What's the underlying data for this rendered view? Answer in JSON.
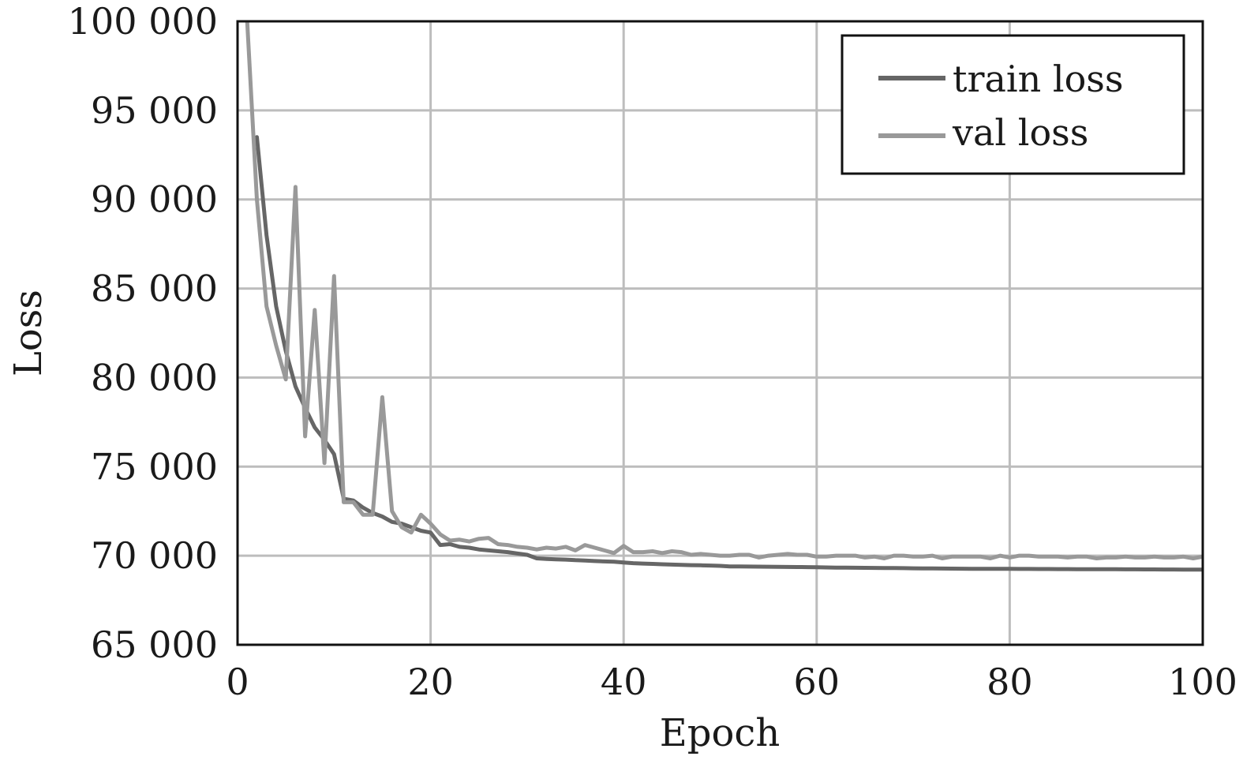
{
  "chart_data": {
    "type": "line",
    "title": "",
    "xlabel": "Epoch",
    "ylabel": "Loss",
    "xlim": [
      0,
      100
    ],
    "ylim": [
      65000,
      100000
    ],
    "xticks": [
      0,
      20,
      40,
      60,
      80,
      100
    ],
    "xtick_labels": [
      "0",
      "20",
      "40",
      "60",
      "80",
      "100"
    ],
    "yticks": [
      65000,
      70000,
      75000,
      80000,
      85000,
      90000,
      95000,
      100000
    ],
    "ytick_labels": [
      "65 000",
      "70 000",
      "75 000",
      "80 000",
      "85 000",
      "90 000",
      "95 000",
      "100 000"
    ],
    "grid": true,
    "legend_position": "top-right",
    "series": [
      {
        "name": "train loss",
        "color": "#666666",
        "x": [
          2,
          3,
          4,
          5,
          6,
          7,
          8,
          9,
          10,
          11,
          12,
          13,
          14,
          15,
          16,
          17,
          18,
          19,
          20,
          21,
          22,
          23,
          24,
          25,
          26,
          27,
          28,
          29,
          30,
          31,
          32,
          33,
          34,
          35,
          36,
          37,
          38,
          39,
          40,
          41,
          42,
          43,
          44,
          45,
          46,
          47,
          48,
          49,
          50,
          51,
          52,
          53,
          54,
          55,
          56,
          57,
          58,
          59,
          60,
          61,
          62,
          63,
          64,
          65,
          66,
          67,
          68,
          69,
          70,
          71,
          72,
          73,
          74,
          75,
          76,
          77,
          78,
          79,
          80,
          81,
          82,
          83,
          84,
          85,
          86,
          87,
          88,
          89,
          90,
          91,
          92,
          93,
          94,
          95,
          96,
          97,
          98,
          99,
          100
        ],
        "values": [
          93500,
          88000,
          84000,
          81500,
          79500,
          78300,
          77200,
          76500,
          75700,
          73200,
          73100,
          72700,
          72400,
          72200,
          71900,
          71800,
          71600,
          71400,
          71300,
          70600,
          70650,
          70500,
          70450,
          70350,
          70300,
          70250,
          70200,
          70120,
          70050,
          69850,
          69820,
          69800,
          69780,
          69750,
          69730,
          69700,
          69680,
          69660,
          69620,
          69580,
          69560,
          69540,
          69520,
          69500,
          69490,
          69470,
          69460,
          69450,
          69430,
          69400,
          69395,
          69390,
          69385,
          69380,
          69375,
          69370,
          69365,
          69360,
          69355,
          69340,
          69335,
          69330,
          69325,
          69320,
          69315,
          69310,
          69305,
          69300,
          69295,
          69290,
          69285,
          69280,
          69275,
          69270,
          69268,
          69266,
          69264,
          69262,
          69260,
          69258,
          69256,
          69254,
          69252,
          69250,
          69248,
          69246,
          69244,
          69242,
          69240,
          69238,
          69236,
          69234,
          69232,
          69230,
          69228,
          69226,
          69224,
          69222,
          69220
        ]
      },
      {
        "name": "val loss",
        "color": "#999999",
        "x": [
          1,
          2,
          3,
          4,
          5,
          6,
          7,
          8,
          9,
          10,
          11,
          12,
          13,
          14,
          15,
          16,
          17,
          18,
          19,
          20,
          21,
          22,
          23,
          24,
          25,
          26,
          27,
          28,
          29,
          30,
          31,
          32,
          33,
          34,
          35,
          36,
          37,
          38,
          39,
          40,
          41,
          42,
          43,
          44,
          45,
          46,
          47,
          48,
          49,
          50,
          51,
          52,
          53,
          54,
          55,
          56,
          57,
          58,
          59,
          60,
          61,
          62,
          63,
          64,
          65,
          66,
          67,
          68,
          69,
          70,
          71,
          72,
          73,
          74,
          75,
          76,
          77,
          78,
          79,
          80,
          81,
          82,
          83,
          84,
          85,
          86,
          87,
          88,
          89,
          90,
          91,
          92,
          93,
          94,
          95,
          96,
          97,
          98,
          99,
          100
        ],
        "values": [
          100000,
          90000,
          84000,
          81800,
          79900,
          90700,
          76700,
          83800,
          75200,
          85700,
          73000,
          73000,
          72300,
          72300,
          78900,
          72500,
          71600,
          71300,
          72300,
          71800,
          71200,
          70850,
          70900,
          70800,
          70950,
          71000,
          70650,
          70600,
          70500,
          70450,
          70350,
          70450,
          70400,
          70500,
          70300,
          70600,
          70450,
          70300,
          70150,
          70550,
          70200,
          70200,
          70250,
          70150,
          70250,
          70200,
          70050,
          70100,
          70050,
          70000,
          70000,
          70050,
          70050,
          69900,
          70000,
          70050,
          70100,
          70050,
          70050,
          69950,
          69950,
          70000,
          70000,
          70000,
          69900,
          69950,
          69850,
          70000,
          70000,
          69950,
          69950,
          70000,
          69850,
          69950,
          69950,
          69950,
          69950,
          69850,
          70000,
          69900,
          70000,
          70000,
          69950,
          69950,
          69950,
          69900,
          69950,
          69950,
          69850,
          69900,
          69900,
          69950,
          69900,
          69900,
          69950,
          69900,
          69900,
          69950,
          69850,
          69950
        ]
      }
    ]
  }
}
